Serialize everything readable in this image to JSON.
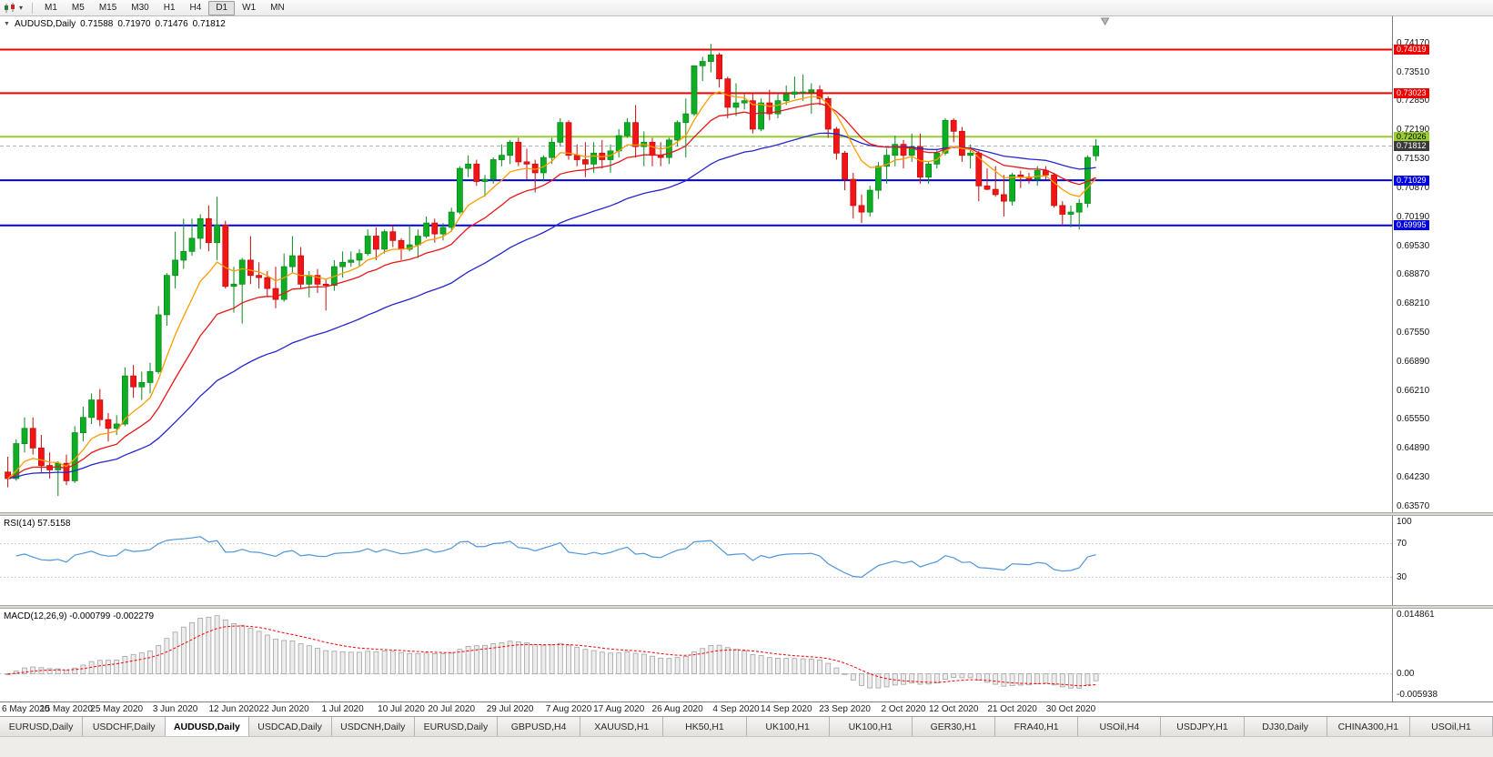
{
  "toolbar": {
    "timeframes": [
      "M1",
      "M5",
      "M15",
      "M30",
      "H1",
      "H4",
      "D1",
      "W1",
      "MN"
    ],
    "active_timeframe": "D1"
  },
  "chart_header": {
    "symbol": "AUDUSD,Daily",
    "open": "0.71588",
    "high": "0.71970",
    "low": "0.71476",
    "close": "0.71812"
  },
  "price_scale": {
    "labels": [
      "0.74170",
      "0.73510",
      "0.72850",
      "0.72190",
      "0.71530",
      "0.70870",
      "0.70190",
      "0.69530",
      "0.68870",
      "0.68210",
      "0.67550",
      "0.66890",
      "0.66210",
      "0.65550",
      "0.64890",
      "0.64230",
      "0.63570"
    ],
    "top_value": 0.7417,
    "step": 0.006625
  },
  "lines": [
    {
      "price": 0.74019,
      "label": "0.74019",
      "color": "#f00000",
      "badge_bg": "#f00000",
      "badge_fg": "#ffffff"
    },
    {
      "price": 0.73023,
      "label": "0.73023",
      "color": "#f00000",
      "badge_bg": "#f00000",
      "badge_fg": "#ffffff"
    },
    {
      "price": 0.72026,
      "label": "0.72026",
      "color": "#9acd32",
      "badge_bg": "#9acd32",
      "badge_fg": "#000000"
    },
    {
      "price": 0.71029,
      "label": "0.71029",
      "color": "#0000e6",
      "badge_bg": "#0000e6",
      "badge_fg": "#ffffff"
    },
    {
      "price": 0.69995,
      "label": "0.69995",
      "color": "#0000e6",
      "badge_bg": "#0000e6",
      "badge_fg": "#ffffff"
    }
  ],
  "current_price": {
    "value": 0.71812,
    "label": "0.71812",
    "line_color": "#b0b0b0",
    "badge_bg": "#3a3a3a",
    "badge_fg": "#ffffff"
  },
  "panes": {
    "rsi": {
      "title": "RSI(14) 57.5158",
      "scale_labels": [
        "100",
        "70",
        "30"
      ],
      "levels": [
        70,
        30
      ],
      "range": [
        0,
        100
      ],
      "line_color": "#4f96d8",
      "level_color": "#c8c8c8"
    },
    "macd": {
      "title": "MACD(12,26,9) -0.000799 -0.002279",
      "scale_labels": [
        "0.014861",
        "0.00",
        "-0.005938"
      ],
      "range": [
        -0.005938,
        0.014861
      ],
      "histogram_fill": "#ededed",
      "histogram_stroke": "#a2a2a2",
      "signal_color": "#ff0000",
      "zero_line_color": "#c8c8c8"
    }
  },
  "chart_data": {
    "type": "candlestick",
    "symbol": "AUDUSD",
    "timeframe": "Daily",
    "ylim": [
      0.6343,
      0.7478
    ],
    "up_color": "#0eae24",
    "up_stroke": "#0a8a1c",
    "down_color": "#f21515",
    "down_stroke": "#c40e0e",
    "ma_lines": [
      {
        "name": "slow",
        "period": 40,
        "color": "#2626cc"
      },
      {
        "name": "medium",
        "period": 17,
        "color": "#e81717"
      },
      {
        "name": "fast",
        "period": 8,
        "color": "#ff9c00"
      }
    ],
    "x_labels": [
      {
        "index": 0,
        "label": "6 May 2020"
      },
      {
        "index": 7,
        "label": "15 May 2020"
      },
      {
        "index": 13,
        "label": "25 May 2020"
      },
      {
        "index": 20,
        "label": "3 Jun 2020"
      },
      {
        "index": 27,
        "label": "12 Jun 2020"
      },
      {
        "index": 33,
        "label": "22 Jun 2020"
      },
      {
        "index": 40,
        "label": "1 Jul 2020"
      },
      {
        "index": 47,
        "label": "10 Jul 2020"
      },
      {
        "index": 53,
        "label": "20 Jul 2020"
      },
      {
        "index": 60,
        "label": "29 Jul 2020"
      },
      {
        "index": 67,
        "label": "7 Aug 2020"
      },
      {
        "index": 73,
        "label": "17 Aug 2020"
      },
      {
        "index": 80,
        "label": "26 Aug 2020"
      },
      {
        "index": 87,
        "label": "4 Sep 2020"
      },
      {
        "index": 93,
        "label": "14 Sep 2020"
      },
      {
        "index": 100,
        "label": "23 Sep 2020"
      },
      {
        "index": 107,
        "label": "2 Oct 2020"
      },
      {
        "index": 113,
        "label": "12 Oct 2020"
      },
      {
        "index": 120,
        "label": "21 Oct 2020"
      },
      {
        "index": 127,
        "label": "30 Oct 2020"
      }
    ],
    "candles": [
      [
        0.6435,
        0.647,
        0.64,
        0.642
      ],
      [
        0.642,
        0.651,
        0.6415,
        0.65
      ],
      [
        0.65,
        0.656,
        0.648,
        0.6535
      ],
      [
        0.6535,
        0.656,
        0.6475,
        0.649
      ],
      [
        0.649,
        0.652,
        0.6435,
        0.645
      ],
      [
        0.645,
        0.648,
        0.642,
        0.644
      ],
      [
        0.644,
        0.646,
        0.638,
        0.6455
      ],
      [
        0.6455,
        0.6475,
        0.6405,
        0.6415
      ],
      [
        0.6415,
        0.654,
        0.641,
        0.6525
      ],
      [
        0.6525,
        0.6585,
        0.6505,
        0.656
      ],
      [
        0.656,
        0.6615,
        0.6545,
        0.66
      ],
      [
        0.66,
        0.6625,
        0.654,
        0.6555
      ],
      [
        0.6555,
        0.657,
        0.6505,
        0.6535
      ],
      [
        0.6535,
        0.6565,
        0.652,
        0.6545
      ],
      [
        0.6545,
        0.6675,
        0.654,
        0.6655
      ],
      [
        0.6655,
        0.668,
        0.6605,
        0.663
      ],
      [
        0.663,
        0.6665,
        0.66,
        0.664
      ],
      [
        0.664,
        0.6685,
        0.6615,
        0.6665
      ],
      [
        0.6665,
        0.6815,
        0.666,
        0.6795
      ],
      [
        0.6795,
        0.689,
        0.677,
        0.6885
      ],
      [
        0.6885,
        0.6985,
        0.6855,
        0.692
      ],
      [
        0.692,
        0.7015,
        0.69,
        0.694
      ],
      [
        0.694,
        0.7015,
        0.693,
        0.697
      ],
      [
        0.697,
        0.7025,
        0.6945,
        0.7015
      ],
      [
        0.7015,
        0.7045,
        0.694,
        0.696
      ],
      [
        0.696,
        0.7065,
        0.692,
        0.7
      ],
      [
        0.7,
        0.701,
        0.6855,
        0.686
      ],
      [
        0.686,
        0.6905,
        0.68,
        0.6865
      ],
      [
        0.6865,
        0.6925,
        0.6775,
        0.692
      ],
      [
        0.692,
        0.6975,
        0.6865,
        0.6885
      ],
      [
        0.6885,
        0.6915,
        0.6855,
        0.688
      ],
      [
        0.688,
        0.6895,
        0.6835,
        0.6855
      ],
      [
        0.6855,
        0.6905,
        0.681,
        0.683
      ],
      [
        0.683,
        0.6935,
        0.6825,
        0.6905
      ],
      [
        0.6905,
        0.6975,
        0.689,
        0.693
      ],
      [
        0.693,
        0.695,
        0.6855,
        0.6865
      ],
      [
        0.6865,
        0.6895,
        0.6835,
        0.6885
      ],
      [
        0.6885,
        0.69,
        0.6845,
        0.6865
      ],
      [
        0.6865,
        0.6875,
        0.6805,
        0.6862
      ],
      [
        0.6862,
        0.692,
        0.685,
        0.6905
      ],
      [
        0.6905,
        0.694,
        0.688,
        0.6915
      ],
      [
        0.6915,
        0.694,
        0.6905,
        0.692
      ],
      [
        0.692,
        0.6945,
        0.6905,
        0.6935
      ],
      [
        0.6935,
        0.699,
        0.693,
        0.6975
      ],
      [
        0.6975,
        0.6995,
        0.692,
        0.6945
      ],
      [
        0.6945,
        0.699,
        0.6935,
        0.6985
      ],
      [
        0.6985,
        0.7,
        0.695,
        0.6965
      ],
      [
        0.6965,
        0.697,
        0.692,
        0.6945
      ],
      [
        0.6945,
        0.7,
        0.694,
        0.6955
      ],
      [
        0.6955,
        0.699,
        0.6925,
        0.6975
      ],
      [
        0.6975,
        0.702,
        0.697,
        0.7005
      ],
      [
        0.7005,
        0.7015,
        0.696,
        0.698
      ],
      [
        0.698,
        0.7005,
        0.6965,
        0.6995
      ],
      [
        0.6995,
        0.704,
        0.6985,
        0.703
      ],
      [
        0.703,
        0.7135,
        0.7025,
        0.713
      ],
      [
        0.713,
        0.716,
        0.711,
        0.714
      ],
      [
        0.714,
        0.715,
        0.709,
        0.71
      ],
      [
        0.71,
        0.7115,
        0.7065,
        0.7105
      ],
      [
        0.7105,
        0.7155,
        0.7095,
        0.715
      ],
      [
        0.715,
        0.7185,
        0.7135,
        0.716
      ],
      [
        0.716,
        0.7195,
        0.714,
        0.719
      ],
      [
        0.719,
        0.72,
        0.7135,
        0.7145
      ],
      [
        0.7145,
        0.7175,
        0.7105,
        0.714
      ],
      [
        0.714,
        0.715,
        0.7075,
        0.712
      ],
      [
        0.712,
        0.716,
        0.71,
        0.7155
      ],
      [
        0.7155,
        0.72,
        0.714,
        0.719
      ],
      [
        0.719,
        0.7245,
        0.718,
        0.7235
      ],
      [
        0.7235,
        0.724,
        0.715,
        0.716
      ],
      [
        0.716,
        0.7185,
        0.7135,
        0.715
      ],
      [
        0.715,
        0.719,
        0.711,
        0.714
      ],
      [
        0.714,
        0.719,
        0.712,
        0.7165
      ],
      [
        0.7165,
        0.7195,
        0.713,
        0.715
      ],
      [
        0.715,
        0.7185,
        0.712,
        0.717
      ],
      [
        0.717,
        0.722,
        0.7155,
        0.7205
      ],
      [
        0.7205,
        0.7245,
        0.72,
        0.7235
      ],
      [
        0.7235,
        0.7275,
        0.7155,
        0.718
      ],
      [
        0.718,
        0.7215,
        0.7135,
        0.719
      ],
      [
        0.719,
        0.72,
        0.7135,
        0.716
      ],
      [
        0.716,
        0.719,
        0.7135,
        0.7155
      ],
      [
        0.7155,
        0.72,
        0.714,
        0.7195
      ],
      [
        0.7195,
        0.724,
        0.718,
        0.7235
      ],
      [
        0.7235,
        0.729,
        0.7155,
        0.7255
      ],
      [
        0.7255,
        0.7365,
        0.725,
        0.7365
      ],
      [
        0.7365,
        0.7385,
        0.733,
        0.7375
      ],
      [
        0.7375,
        0.7415,
        0.735,
        0.739
      ],
      [
        0.739,
        0.7395,
        0.7315,
        0.7335
      ],
      [
        0.7335,
        0.734,
        0.7245,
        0.727
      ],
      [
        0.727,
        0.7325,
        0.725,
        0.728
      ],
      [
        0.728,
        0.73,
        0.7265,
        0.7285
      ],
      [
        0.7285,
        0.73,
        0.721,
        0.722
      ],
      [
        0.722,
        0.729,
        0.7215,
        0.728
      ],
      [
        0.728,
        0.731,
        0.724,
        0.7255
      ],
      [
        0.7255,
        0.73,
        0.7245,
        0.7285
      ],
      [
        0.7285,
        0.732,
        0.7275,
        0.73
      ],
      [
        0.73,
        0.734,
        0.729,
        0.7305
      ],
      [
        0.7305,
        0.7345,
        0.7285,
        0.7305
      ],
      [
        0.7305,
        0.7325,
        0.7255,
        0.731
      ],
      [
        0.731,
        0.732,
        0.7275,
        0.729
      ],
      [
        0.729,
        0.7295,
        0.72,
        0.722
      ],
      [
        0.722,
        0.7225,
        0.715,
        0.7165
      ],
      [
        0.7165,
        0.717,
        0.708,
        0.7105
      ],
      [
        0.7105,
        0.712,
        0.7015,
        0.7045
      ],
      [
        0.7045,
        0.707,
        0.7005,
        0.703
      ],
      [
        0.703,
        0.709,
        0.702,
        0.708
      ],
      [
        0.708,
        0.7145,
        0.706,
        0.7135
      ],
      [
        0.7135,
        0.7175,
        0.7095,
        0.716
      ],
      [
        0.716,
        0.7205,
        0.7135,
        0.7185
      ],
      [
        0.7185,
        0.7195,
        0.713,
        0.716
      ],
      [
        0.716,
        0.721,
        0.7145,
        0.718
      ],
      [
        0.718,
        0.721,
        0.7095,
        0.711
      ],
      [
        0.711,
        0.7145,
        0.7095,
        0.714
      ],
      [
        0.714,
        0.7175,
        0.713,
        0.7165
      ],
      [
        0.7165,
        0.7245,
        0.716,
        0.724
      ],
      [
        0.724,
        0.7245,
        0.719,
        0.7215
      ],
      [
        0.7215,
        0.7225,
        0.7145,
        0.716
      ],
      [
        0.716,
        0.7185,
        0.713,
        0.7165
      ],
      [
        0.7165,
        0.717,
        0.7055,
        0.709
      ],
      [
        0.709,
        0.713,
        0.708,
        0.7082
      ],
      [
        0.7082,
        0.7135,
        0.7065,
        0.707
      ],
      [
        0.707,
        0.7115,
        0.702,
        0.7055
      ],
      [
        0.7055,
        0.712,
        0.7045,
        0.7115
      ],
      [
        0.7115,
        0.7125,
        0.7085,
        0.711
      ],
      [
        0.711,
        0.712,
        0.7095,
        0.7105
      ],
      [
        0.7105,
        0.7135,
        0.709,
        0.7125
      ],
      [
        0.7125,
        0.7135,
        0.7105,
        0.7115
      ],
      [
        0.7115,
        0.712,
        0.704,
        0.7045
      ],
      [
        0.7045,
        0.7055,
        0.7,
        0.7025
      ],
      [
        0.7025,
        0.7045,
        0.6995,
        0.703
      ],
      [
        0.703,
        0.706,
        0.699,
        0.705
      ],
      [
        0.705,
        0.716,
        0.704,
        0.7155
      ],
      [
        0.71588,
        0.7197,
        0.71476,
        0.71812
      ]
    ]
  },
  "tabs": {
    "active_index": 2,
    "items": [
      "EURUSD,Daily",
      "USDCHF,Daily",
      "AUDUSD,Daily",
      "USDCAD,Daily",
      "USDCNH,Daily",
      "EURUSD,Daily",
      "GBPUSD,H4",
      "XAUUSD,H1",
      "HK50,H1",
      "UK100,H1",
      "UK100,H1",
      "GER30,H1",
      "FRA40,H1",
      "USOil,H4",
      "USDJPY,H1",
      "DJ30,Daily",
      "CHINA300,H1",
      "USOil,H1"
    ]
  }
}
